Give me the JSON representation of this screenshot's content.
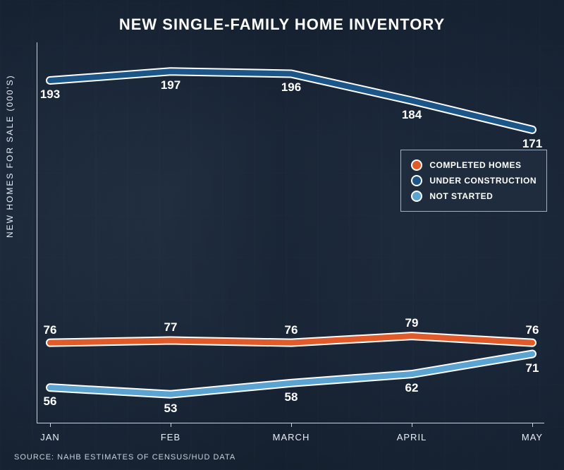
{
  "chart": {
    "type": "line",
    "title": "NEW SINGLE-FAMILY HOME INVENTORY",
    "y_axis_label": "NEW HOMES FOR SALE (000'S)",
    "source": "SOURCE: NAHB ESTIMATES OF CENSUS/HUD DATA",
    "background_color": "#1f2f42",
    "axis_color": "#c8d2de",
    "title_color": "#ffffff",
    "title_fontsize": 22,
    "label_fontsize": 12,
    "data_label_fontsize": 17,
    "x_categories": [
      "JAN",
      "FEB",
      "MARCH",
      "APRIL",
      "MAY"
    ],
    "y_range": [
      40,
      210
    ],
    "line_width": 8,
    "line_outline_width": 12,
    "line_outline_color": "#ffffff",
    "series": [
      {
        "name": "UNDER CONSTRUCTION",
        "color": "#1c5689",
        "values": [
          193,
          197,
          196,
          184,
          171
        ],
        "label_position": "below"
      },
      {
        "name": "COMPLETED HOMES",
        "color": "#e15a29",
        "values": [
          76,
          77,
          76,
          79,
          76
        ],
        "label_position": "above"
      },
      {
        "name": "NOT STARTED",
        "color": "#5ba3d0",
        "values": [
          56,
          53,
          58,
          62,
          71
        ],
        "label_position": "below"
      }
    ],
    "legend": {
      "position": "right",
      "order": [
        "COMPLETED HOMES",
        "UNDER CONSTRUCTION",
        "NOT STARTED"
      ],
      "background_color": "rgba(30,45,62,0.92)",
      "border_color": "#9fb0c4"
    }
  }
}
